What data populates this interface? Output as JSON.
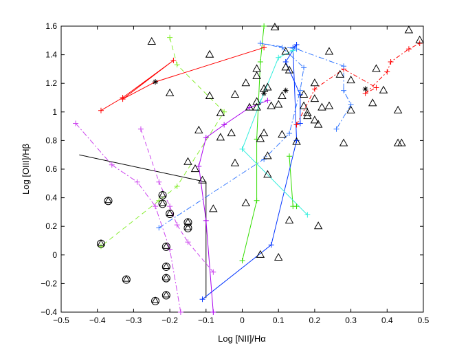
{
  "chart_data": {
    "type": "scatter",
    "title": "",
    "xlabel": "Log [NII]/Hα",
    "ylabel": "Log [OIII]/Hβ",
    "xlim": [
      -0.5,
      0.5
    ],
    "ylim": [
      -0.4,
      1.6
    ],
    "xticks": [
      -0.5,
      -0.4,
      -0.3,
      -0.2,
      -0.1,
      0,
      0.1,
      0.2,
      0.3,
      0.4,
      0.5
    ],
    "yticks": [
      -0.4,
      -0.2,
      0,
      0.2,
      0.4,
      0.6,
      0.8,
      1,
      1.2,
      1.4,
      1.6
    ],
    "xtick_labels": [
      "−0.5",
      "−0.4",
      "−0.3",
      "−0.2",
      "−0.1",
      "0",
      "0.1",
      "0.2",
      "0.3",
      "0.4",
      "0.5"
    ],
    "ytick_labels": [
      "−0.4",
      "−0.2",
      "0",
      "0.2",
      "0.4",
      "0.6",
      "0.8",
      "1",
      "1.2",
      "1.4",
      "1.6"
    ],
    "grid": false,
    "box": true,
    "colors": {
      "black": "#000000",
      "red": "#ff0000",
      "green": "#33dd00",
      "lime": "#88ee33",
      "blue": "#0033ff",
      "cornflower": "#3377ff",
      "cyan": "#33eedd",
      "magenta": "#aa00ee",
      "violet": "#cc44ee"
    },
    "triangles": [
      [
        -0.25,
        1.49
      ],
      [
        -0.2,
        1.13
      ],
      [
        -0.09,
        1.4
      ],
      [
        -0.09,
        1.11
      ],
      [
        -0.06,
        0.99
      ],
      [
        -0.02,
        1.12
      ],
      [
        -0.12,
        0.87
      ],
      [
        -0.06,
        0.82
      ],
      [
        -0.03,
        0.85
      ],
      [
        -0.15,
        0.65
      ],
      [
        -0.13,
        0.6
      ],
      [
        -0.11,
        0.52
      ],
      [
        -0.08,
        0.32
      ],
      [
        -0.02,
        0.64
      ],
      [
        0.01,
        0.36
      ],
      [
        0.01,
        1.2
      ],
      [
        0.02,
        1.03
      ],
      [
        0.04,
        1.25
      ],
      [
        0.04,
        1.3
      ],
      [
        0.04,
        1.07
      ],
      [
        0.04,
        1.03
      ],
      [
        0.05,
        0.81
      ],
      [
        0.06,
        0.85
      ],
      [
        0.07,
        1.17
      ],
      [
        0.07,
        0.69
      ],
      [
        0.07,
        0.56
      ],
      [
        0.08,
        1.04
      ],
      [
        0.09,
        1.59
      ],
      [
        0.1,
        1.05
      ],
      [
        0.11,
        1.11
      ],
      [
        0.11,
        0.84
      ],
      [
        0.12,
        1.42
      ],
      [
        0.12,
        1.31
      ],
      [
        0.13,
        1.29
      ],
      [
        0.15,
        0.79
      ],
      [
        0.17,
        1.12
      ],
      [
        0.17,
        1.04
      ],
      [
        0.18,
        0.99
      ],
      [
        0.18,
        0.97
      ],
      [
        0.2,
        1.2
      ],
      [
        0.2,
        1.09
      ],
      [
        0.2,
        0.94
      ],
      [
        0.21,
        0.91
      ],
      [
        0.22,
        1.03
      ],
      [
        0.24,
        1.04
      ],
      [
        0.24,
        1.42
      ],
      [
        0.27,
        1.26
      ],
      [
        0.28,
        0.78
      ],
      [
        0.3,
        1.01
      ],
      [
        0.3,
        1.22
      ],
      [
        0.36,
        1.06
      ],
      [
        0.37,
        1.3
      ],
      [
        0.39,
        1.15
      ],
      [
        0.43,
        1.01
      ],
      [
        0.43,
        0.78
      ],
      [
        0.44,
        0.78
      ],
      [
        0.46,
        1.57
      ],
      [
        0.49,
        1.5
      ],
      [
        0.05,
        -0.0
      ],
      [
        0.06,
        1.16
      ],
      [
        0.1,
        -0.02
      ],
      [
        0.21,
        0.2
      ],
      [
        0.13,
        0.24
      ]
    ],
    "circled_triangles": [
      [
        -0.37,
        0.38
      ],
      [
        -0.39,
        0.08
      ],
      [
        -0.32,
        -0.17
      ],
      [
        -0.22,
        0.42
      ],
      [
        -0.22,
        0.36
      ],
      [
        -0.2,
        0.29
      ],
      [
        -0.15,
        0.23
      ],
      [
        -0.15,
        0.19
      ],
      [
        -0.21,
        0.06
      ],
      [
        -0.21,
        -0.08
      ],
      [
        -0.21,
        -0.16
      ],
      [
        -0.21,
        -0.28
      ],
      [
        -0.24,
        -0.32
      ]
    ],
    "asterisks": [
      [
        -0.24,
        1.21
      ],
      [
        0.06,
        1.13
      ],
      [
        0.12,
        1.15
      ],
      [
        0.34,
        1.16
      ]
    ],
    "lines": [
      {
        "color": "#000000",
        "dash": "",
        "points": [
          [
            -0.45,
            0.7
          ],
          [
            -0.1,
            0.51
          ],
          [
            -0.1,
            0.51
          ],
          [
            -0.1,
            -0.3
          ],
          [
            -0.1,
            -0.3
          ]
        ],
        "marker": false
      },
      {
        "color": "#ff0000",
        "dash": "",
        "points": [
          [
            -0.39,
            1.01
          ],
          [
            -0.33,
            1.1
          ],
          [
            -0.19,
            1.36
          ],
          [
            -0.33,
            1.09
          ],
          [
            -0.24,
            1.21
          ],
          [
            0.06,
            1.45
          ]
        ],
        "marker": "+"
      },
      {
        "color": "#ff0000",
        "dash": "6,3,2,3",
        "points": [
          [
            0.15,
            0.91
          ],
          [
            0.2,
            1.16
          ],
          [
            0.28,
            1.3
          ],
          [
            0.37,
            1.17
          ],
          [
            0.34,
            1.13
          ],
          [
            0.4,
            1.28
          ],
          [
            0.41,
            1.35
          ],
          [
            0.46,
            1.44
          ],
          [
            0.49,
            1.48
          ]
        ],
        "marker": "+"
      },
      {
        "color": "#88ee33",
        "dash": "7,5",
        "points": [
          [
            -0.2,
            1.52
          ],
          [
            -0.18,
            1.33
          ],
          [
            -0.05,
            1.0
          ],
          [
            -0.18,
            0.48
          ],
          [
            -0.23,
            0.38
          ],
          [
            -0.39,
            0.06
          ]
        ],
        "marker": "+"
      },
      {
        "color": "#33dd00",
        "dash": "",
        "points": [
          [
            0.0,
            -0.04
          ],
          [
            0.04,
            0.38
          ],
          [
            0.04,
            0.81
          ],
          [
            0.05,
            1.35
          ],
          [
            0.06,
            1.6
          ]
        ],
        "marker": "+"
      },
      {
        "color": "#33dd00",
        "dash": "",
        "points": [
          [
            0.13,
            0.69
          ],
          [
            0.14,
            0.34
          ],
          [
            0.15,
            0.34
          ]
        ],
        "marker": "+"
      },
      {
        "color": "#0033ff",
        "dash": "",
        "points": [
          [
            -0.11,
            -0.31
          ],
          [
            0.08,
            0.07
          ],
          [
            0.15,
            0.8
          ],
          [
            0.14,
            1.45
          ],
          [
            0.15,
            1.47
          ],
          [
            0.12,
            1.35
          ],
          [
            0.16,
            1.12
          ],
          [
            0.16,
            0.92
          ]
        ],
        "marker": "+"
      },
      {
        "color": "#3377ff",
        "dash": "8,3,2,3",
        "points": [
          [
            -0.23,
            0.19
          ],
          [
            0.06,
            0.67
          ],
          [
            0.13,
            0.85
          ],
          [
            0.16,
            1.15
          ],
          [
            0.17,
            1.31
          ],
          [
            0.11,
            1.45
          ],
          [
            0.05,
            1.48
          ],
          [
            0.15,
            1.44
          ],
          [
            0.28,
            1.32
          ],
          [
            0.28,
            1.15
          ],
          [
            0.3,
            1.05
          ],
          [
            0.26,
            0.88
          ]
        ],
        "marker": "+"
      },
      {
        "color": "#33eedd",
        "dash": "",
        "points": [
          [
            0.18,
            0.28
          ],
          [
            0.0,
            0.74
          ],
          [
            0.05,
            1.07
          ],
          [
            0.1,
            1.38
          ],
          [
            0.14,
            1.43
          ]
        ],
        "marker": "+"
      },
      {
        "color": "#aa00ee",
        "dash": "",
        "points": [
          [
            -0.08,
            -0.4
          ],
          [
            -0.1,
            0.24
          ],
          [
            -0.12,
            0.62
          ],
          [
            -0.1,
            0.82
          ],
          [
            -0.05,
            0.91
          ],
          [
            0.02,
            1.03
          ],
          [
            0.07,
            1.08
          ]
        ],
        "marker": "+"
      },
      {
        "color": "#cc44ee",
        "dash": "6,4",
        "points": [
          [
            -0.28,
            0.88
          ],
          [
            -0.23,
            0.51
          ],
          [
            -0.2,
            0.34
          ],
          [
            -0.18,
            0.21
          ],
          [
            -0.15,
            0.09
          ],
          [
            -0.08,
            -0.12
          ]
        ],
        "marker": "+"
      },
      {
        "color": "#cc44ee",
        "dash": "8,3,2,3",
        "points": [
          [
            -0.46,
            0.92
          ],
          [
            -0.36,
            0.63
          ],
          [
            -0.29,
            0.51
          ],
          [
            -0.24,
            0.34
          ],
          [
            -0.2,
            0.04
          ],
          [
            -0.17,
            -0.4
          ]
        ],
        "marker": "+"
      }
    ]
  }
}
